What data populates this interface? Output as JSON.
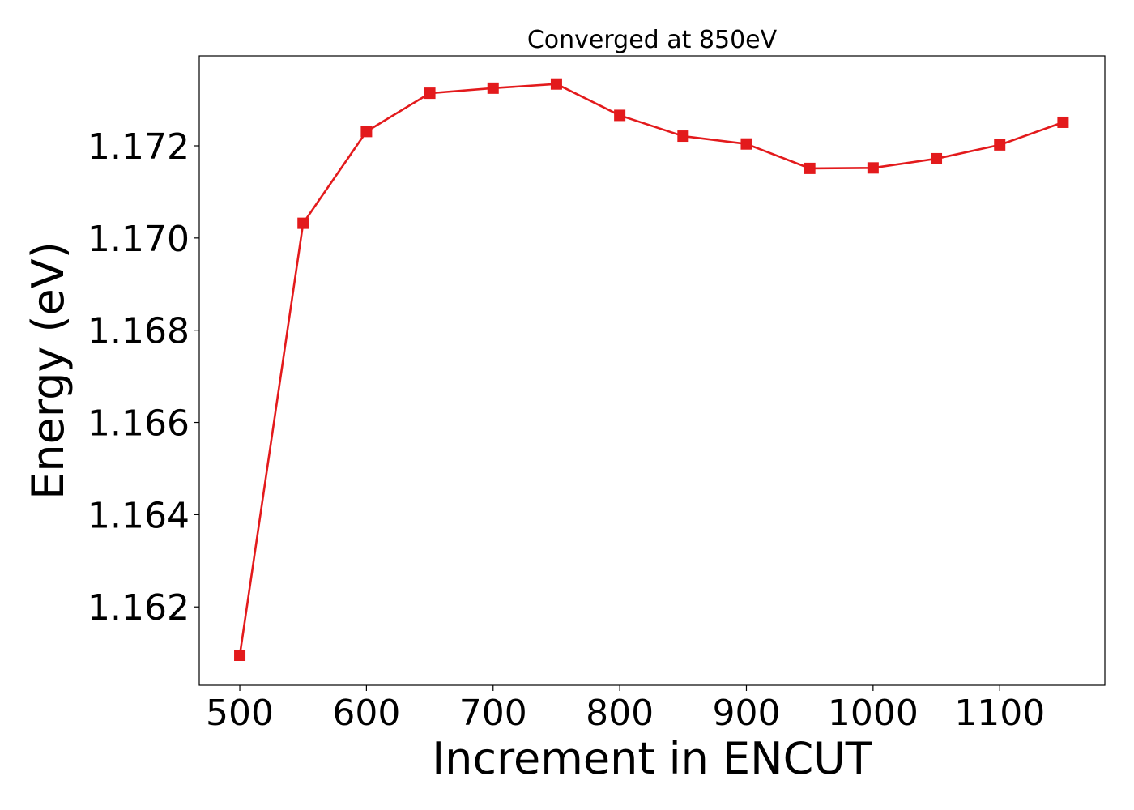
{
  "chart_data": {
    "type": "line",
    "title": "Converged at 850eV",
    "xlabel": "Increment in ENCUT",
    "ylabel": "Energy (eV)",
    "xlim": [
      468,
      1183
    ],
    "ylim": [
      1.1603,
      1.17395
    ],
    "xticks": [
      500,
      600,
      700,
      800,
      900,
      1000,
      1100
    ],
    "xtick_labels": [
      "500",
      "600",
      "700",
      "800",
      "900",
      "1000",
      "1100"
    ],
    "yticks": [
      1.162,
      1.164,
      1.166,
      1.168,
      1.17,
      1.172
    ],
    "ytick_labels": [
      "1.162",
      "1.164",
      "1.166",
      "1.168",
      "1.170",
      "1.172"
    ],
    "grid": false,
    "legend": "none",
    "series": [
      {
        "color": "#e31a1c",
        "marker": "square",
        "x": [
          500,
          550,
          600,
          650,
          700,
          750,
          800,
          850,
          900,
          950,
          1000,
          1050,
          1100,
          1150
        ],
        "y": [
          1.16095,
          1.17032,
          1.17231,
          1.17314,
          1.17325,
          1.17334,
          1.17266,
          1.17221,
          1.17204,
          1.17151,
          1.17152,
          1.17172,
          1.17202,
          1.17251
        ]
      }
    ]
  }
}
